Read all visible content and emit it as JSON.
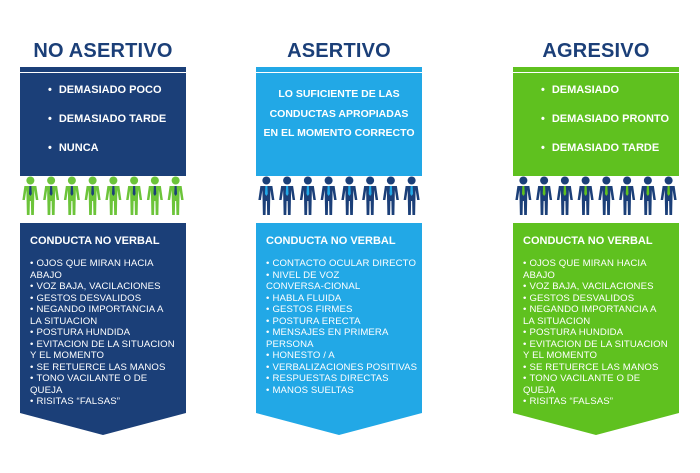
{
  "colors": {
    "dark_blue": "#1b3f78",
    "light_blue": "#22a8e6",
    "green": "#5fc11f",
    "person_green": "#6cc43a",
    "person_blue": "#1b3f78"
  },
  "icons": [
    "person-icon"
  ],
  "columns": [
    {
      "title": "NO ASERTIVO",
      "top_items": [
        "DEMASIADO POCO",
        "DEMASIADO TARDE",
        "NUNCA"
      ],
      "subtitle": "CONDUCTA NO VERBAL",
      "items": [
        "OJOS QUE MIRAN HACIA",
        "ABAJO",
        "VOZ BAJA, VACILACIONES",
        "GESTOS DESVALIDOS",
        "NEGANDO IMPORTANCIA A",
        "LA SITUACION",
        "POSTURA HUNDIDA",
        "EVITACION DE LA SITUACION",
        "Y EL MOMENTO",
        "SE RETUERCE LAS MANOS",
        "TONO VACILANTE O DE QUEJA",
        "RISITAS “FALSAS”"
      ]
    },
    {
      "title": "ASERTIVO",
      "top_lines": [
        "LO SUFICIENTE DE LAS",
        "CONDUCTAS APROPIADAS",
        "EN EL MOMENTO CORRECTO"
      ],
      "subtitle": "CONDUCTA NO VERBAL",
      "items": [
        "CONTACTO OCULAR DIRECTO",
        "NIVEL DE VOZ",
        "CONVERSA-CIONAL",
        "HABLA FLUIDA",
        "GESTOS FIRMES",
        "POSTURA ERECTA",
        "MENSAJES EN PRIMERA",
        "PERSONA",
        "HONESTO / A",
        "VERBALIZACIONES POSITIVAS",
        "RESPUESTAS DIRECTAS",
        "MANOS SUELTAS"
      ]
    },
    {
      "title": "AGRESIVO",
      "top_items": [
        "DEMASIADO",
        "DEMASIADO PRONTO",
        "DEMASIADO TARDE"
      ],
      "subtitle": "CONDUCTA NO VERBAL",
      "items": [
        "OJOS QUE MIRAN HACIA",
        "ABAJO",
        "VOZ BAJA, VACILACIONES",
        "GESTOS DESVALIDOS",
        "NEGANDO IMPORTANCIA A",
        "LA SITUACION",
        "POSTURA HUNDIDA",
        "EVITACION DE LA SITUACION",
        "Y EL MOMENTO",
        "SE RETUERCE LAS MANOS",
        "TONO VACILANTE O DE QUEJA",
        "RISITAS “FALSAS”"
      ]
    }
  ]
}
